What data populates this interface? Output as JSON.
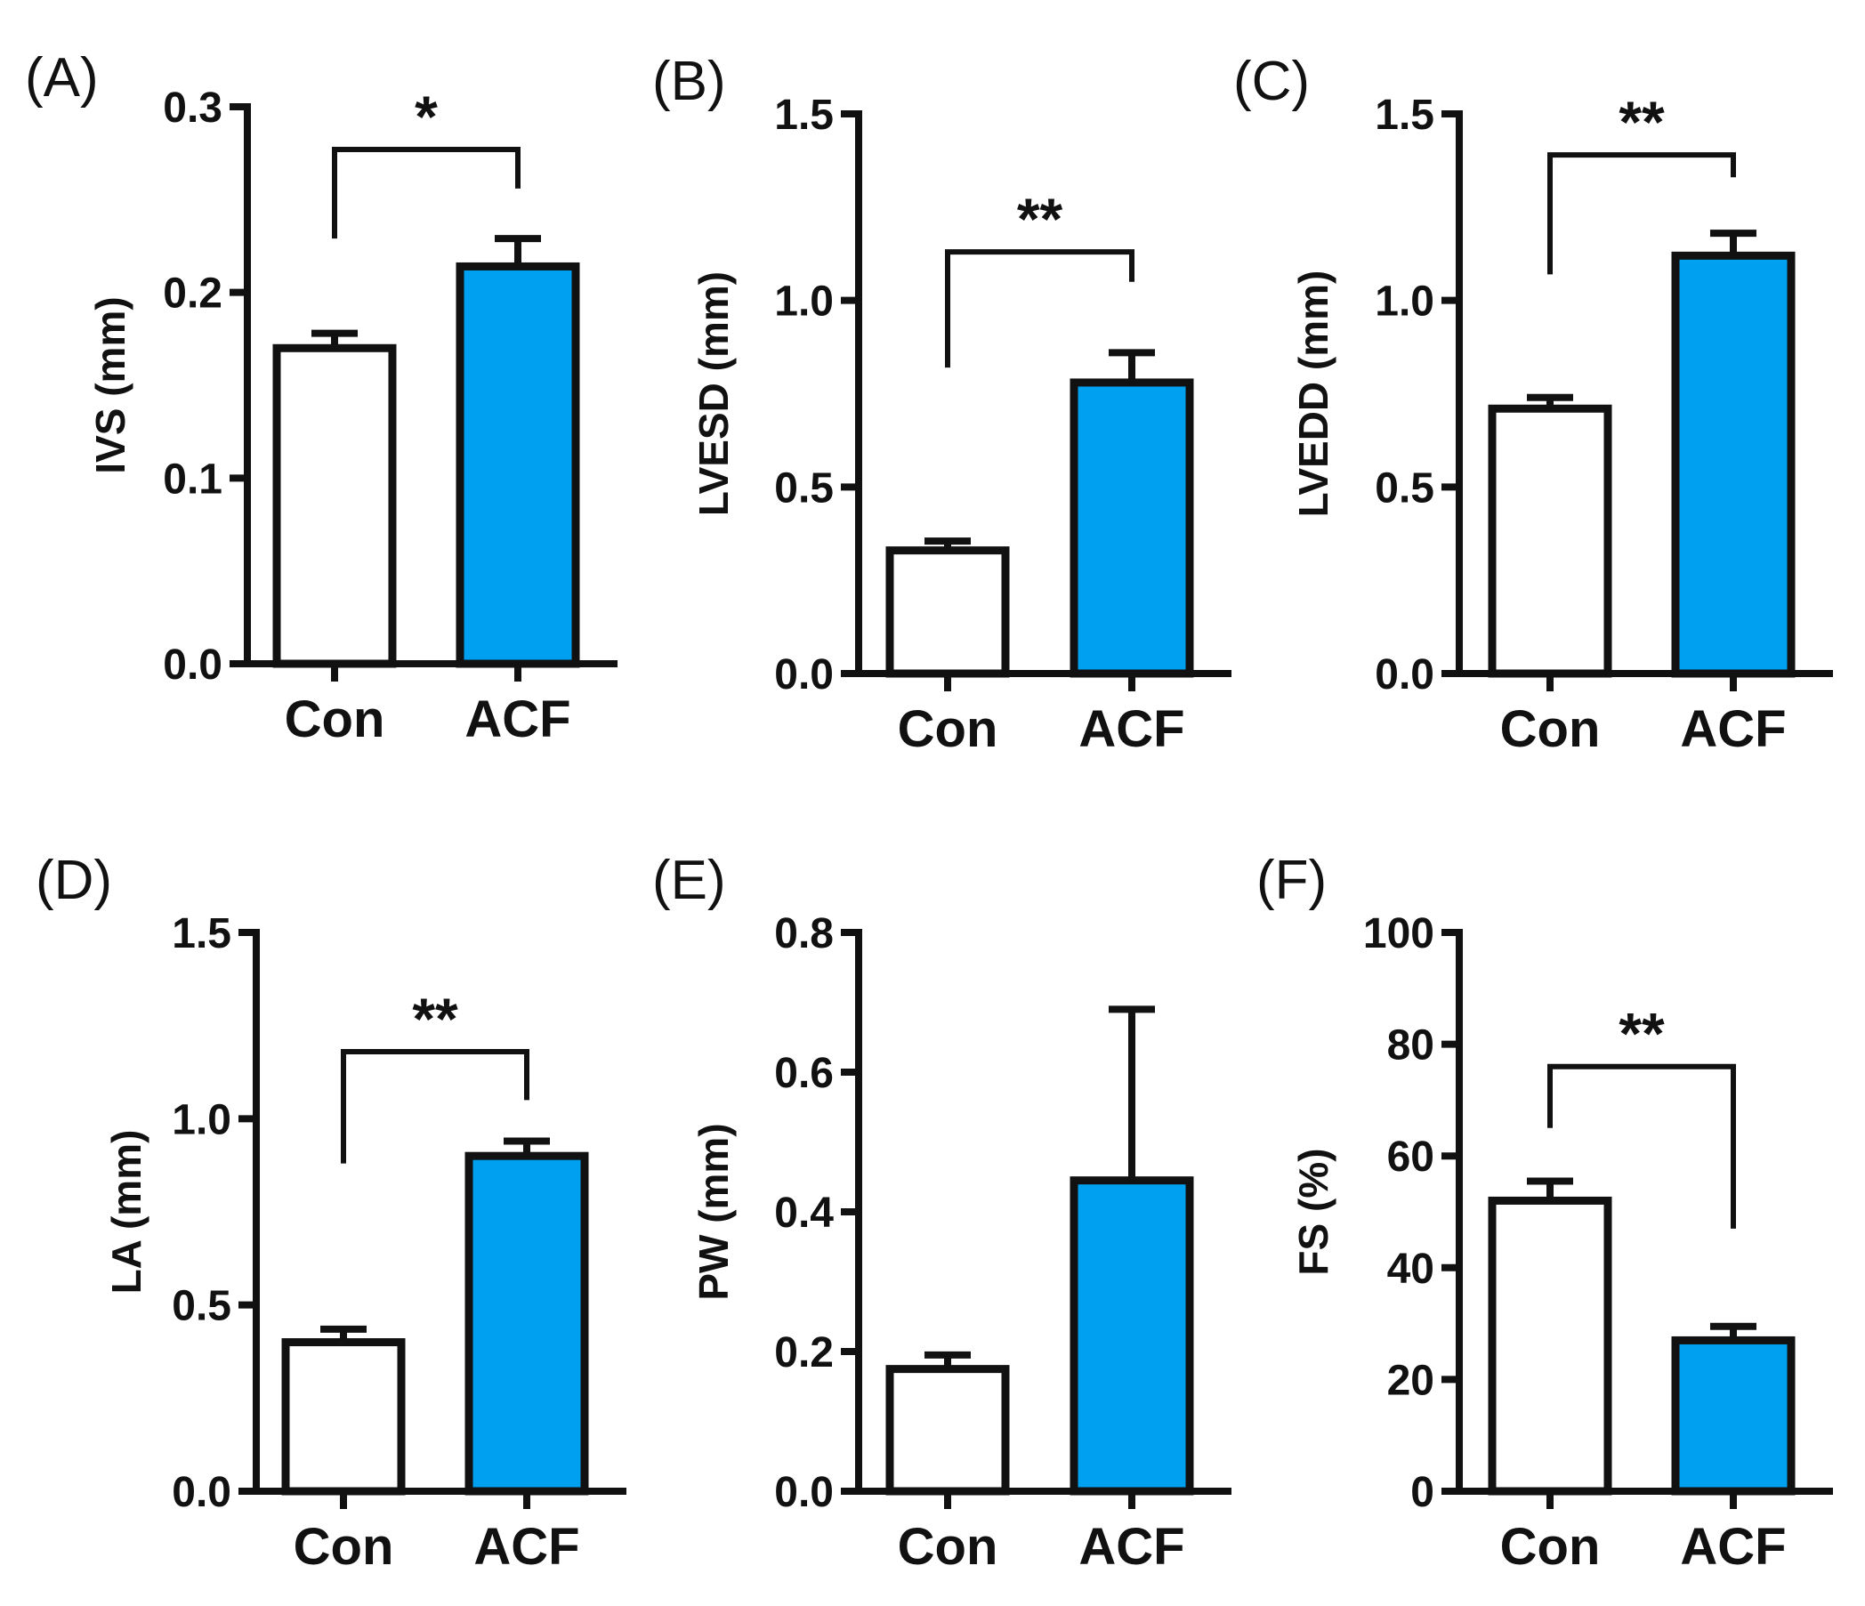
{
  "figure": {
    "background": "#ffffff",
    "colors": {
      "con_fill": "#ffffff",
      "acf_fill": "#00a0f0",
      "stroke": "#111111"
    }
  },
  "chart_data": [
    {
      "panel": "(A)",
      "type": "bar",
      "categories": [
        "Con",
        "ACF"
      ],
      "values": [
        0.17,
        0.214
      ],
      "errors": [
        0.008,
        0.015
      ],
      "ylabel": "IVS (mm)",
      "ylim": [
        0,
        0.3
      ],
      "yticks": [
        0.0,
        0.1,
        0.2,
        0.3
      ],
      "ytick_labels": [
        "0.0",
        "0.1",
        "0.2",
        "0.3"
      ],
      "significance": {
        "label": "*",
        "pair": [
          "Con",
          "ACF"
        ],
        "at": 0.277,
        "from": [
          0.229,
          0.256
        ]
      }
    },
    {
      "panel": "(B)",
      "type": "bar",
      "categories": [
        "Con",
        "ACF"
      ],
      "values": [
        0.33,
        0.78
      ],
      "errors": [
        0.025,
        0.08
      ],
      "ylabel": "LVESD (mm)",
      "ylim": [
        0,
        1.5
      ],
      "yticks": [
        0.0,
        0.5,
        1.0,
        1.5
      ],
      "ytick_labels": [
        "0.0",
        "0.5",
        "1.0",
        "1.5"
      ],
      "significance": {
        "label": "**",
        "pair": [
          "Con",
          "ACF"
        ],
        "at": 1.13,
        "from": [
          0.82,
          1.05
        ]
      }
    },
    {
      "panel": "(C)",
      "type": "bar",
      "categories": [
        "Con",
        "ACF"
      ],
      "values": [
        0.71,
        1.12
      ],
      "errors": [
        0.03,
        0.06
      ],
      "ylabel": "LVEDD (mm)",
      "ylim": [
        0,
        1.5
      ],
      "yticks": [
        0.0,
        0.5,
        1.0,
        1.5
      ],
      "ytick_labels": [
        "0.0",
        "0.5",
        "1.0",
        "1.5"
      ],
      "significance": {
        "label": "**",
        "pair": [
          "Con",
          "ACF"
        ],
        "at": 1.39,
        "from": [
          1.07,
          1.33
        ]
      }
    },
    {
      "panel": "(D)",
      "type": "bar",
      "categories": [
        "Con",
        "ACF"
      ],
      "values": [
        0.4,
        0.9
      ],
      "errors": [
        0.035,
        0.04
      ],
      "ylabel": "LA (mm)",
      "ylim": [
        0,
        1.5
      ],
      "yticks": [
        0.0,
        0.5,
        1.0,
        1.5
      ],
      "ytick_labels": [
        "0.0",
        "0.5",
        "1.0",
        "1.5"
      ],
      "significance": {
        "label": "**",
        "pair": [
          "Con",
          "ACF"
        ],
        "at": 1.18,
        "from": [
          0.88,
          1.05
        ]
      }
    },
    {
      "panel": "(E)",
      "type": "bar",
      "categories": [
        "Con",
        "ACF"
      ],
      "values": [
        0.175,
        0.445
      ],
      "errors": [
        0.02,
        0.245
      ],
      "ylabel": "PW (mm)",
      "ylim": [
        0,
        0.8
      ],
      "yticks": [
        0.0,
        0.2,
        0.4,
        0.6,
        0.8
      ],
      "ytick_labels": [
        "0.0",
        "0.2",
        "0.4",
        "0.6",
        "0.8"
      ],
      "significance": null
    },
    {
      "panel": "(F)",
      "type": "bar",
      "categories": [
        "Con",
        "ACF"
      ],
      "values": [
        52,
        27
      ],
      "errors": [
        3.5,
        2.5
      ],
      "ylabel": "FS (%)",
      "ylim": [
        0,
        100
      ],
      "yticks": [
        0,
        20,
        40,
        60,
        80,
        100
      ],
      "ytick_labels": [
        "0",
        "20",
        "40",
        "60",
        "80",
        "100"
      ],
      "significance": {
        "label": "**",
        "pair": [
          "Con",
          "ACF"
        ],
        "at": 76,
        "from": [
          65,
          47
        ]
      }
    }
  ]
}
